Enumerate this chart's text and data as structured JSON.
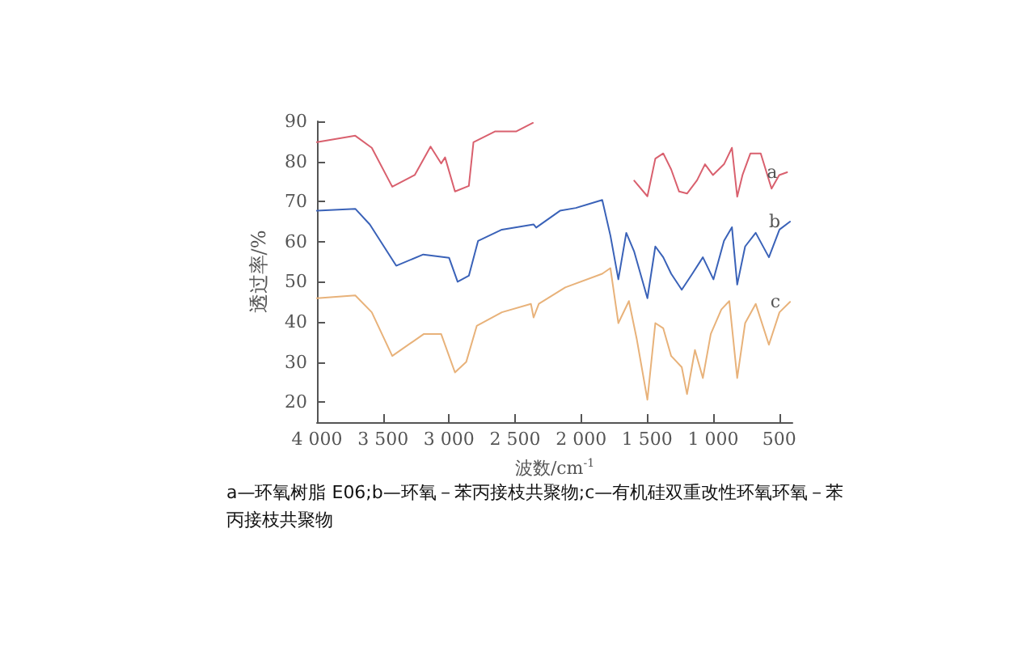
{
  "chart_data": {
    "type": "line",
    "xlabel": "波数/cm$^{-1}$",
    "ylabel": "透过率/%",
    "xlim": [
      4000,
      400
    ],
    "ylim": [
      15,
      90
    ],
    "xticks": [
      {
        "value": 4000,
        "label": "4 000"
      },
      {
        "value": 3500,
        "label": "3 500"
      },
      {
        "value": 3000,
        "label": "3 000"
      },
      {
        "value": 2500,
        "label": "2 500"
      },
      {
        "value": 2000,
        "label": "2 000"
      },
      {
        "value": 1500,
        "label": "1 500"
      },
      {
        "value": 1000,
        "label": "1 000"
      },
      500
    ],
    "yticks": [
      20,
      30,
      40,
      50,
      60,
      70,
      80,
      90
    ],
    "grid": false,
    "legend": false,
    "marker": "none",
    "line_style": "solid",
    "series": [
      {
        "name": "a",
        "color": "#d9606e",
        "x": [
          4000,
          3710,
          3585,
          3430,
          3260,
          3140,
          3060,
          3030,
          2955,
          2850,
          2815,
          2650,
          2490,
          2365,
          2000,
          1598,
          1498,
          1438,
          1378,
          1318,
          1258,
          1198,
          1122,
          1062,
          1002,
          918,
          858,
          818,
          778,
          718,
          640,
          558,
          500,
          440
        ],
        "values": [
          84.8,
          86.4,
          83.4,
          73.7,
          76.6,
          83.7,
          79.5,
          81,
          72.5,
          73.9,
          84.8,
          87.5,
          87.5,
          89.6,
          null,
          75.2,
          71.3,
          80.7,
          82,
          78,
          72.5,
          72,
          75.3,
          79.3,
          76.6,
          79.3,
          83.4,
          71.2,
          76.6,
          82,
          82,
          73.2,
          76.6,
          77.3
        ]
      },
      {
        "name": "b",
        "color": "#3a62b8",
        "x": [
          4000,
          3710,
          3600,
          3400,
          3195,
          3000,
          2935,
          2850,
          2780,
          2600,
          2360,
          2340,
          2160,
          2040,
          1840,
          1778,
          1718,
          1658,
          1598,
          1498,
          1438,
          1378,
          1318,
          1238,
          1158,
          1078,
          998,
          918,
          858,
          818,
          758,
          678,
          578,
          498,
          418
        ],
        "values": [
          67.7,
          68.2,
          64.3,
          54,
          56.8,
          56,
          50,
          51.5,
          60.2,
          63,
          64.3,
          63.5,
          67.7,
          68.4,
          70.4,
          61.5,
          50.6,
          62.2,
          57.5,
          45.9,
          58.8,
          56.1,
          52,
          48,
          52,
          56.1,
          50.6,
          60.2,
          63.6,
          49.3,
          58.8,
          62.2,
          56.1,
          63,
          65
        ]
      },
      {
        "name": "c",
        "color": "#e8b27a",
        "x": [
          4000,
          3710,
          3585,
          3430,
          3190,
          3060,
          2955,
          2870,
          2790,
          2600,
          2380,
          2360,
          2320,
          2120,
          1840,
          1778,
          1718,
          1638,
          1578,
          1498,
          1438,
          1378,
          1318,
          1238,
          1198,
          1138,
          1078,
          1018,
          938,
          878,
          818,
          758,
          678,
          578,
          498,
          418
        ],
        "values": [
          45.9,
          46.6,
          42.4,
          31.5,
          37,
          37,
          27.4,
          30,
          39,
          42.4,
          44.5,
          41.1,
          44.5,
          48.6,
          52,
          53.4,
          39.7,
          45.2,
          35.6,
          20.6,
          39.7,
          38.4,
          31.5,
          28.7,
          22,
          33,
          26,
          37,
          43.1,
          45.2,
          26,
          39.7,
          44.5,
          34.3,
          42.4,
          45
        ]
      }
    ],
    "annotations": [
      "a—环氧树脂 E06;b—环氧－苯丙接枝共聚物;c—有机硅双重改性环氧环氧－苯丙接枝共聚物"
    ]
  }
}
